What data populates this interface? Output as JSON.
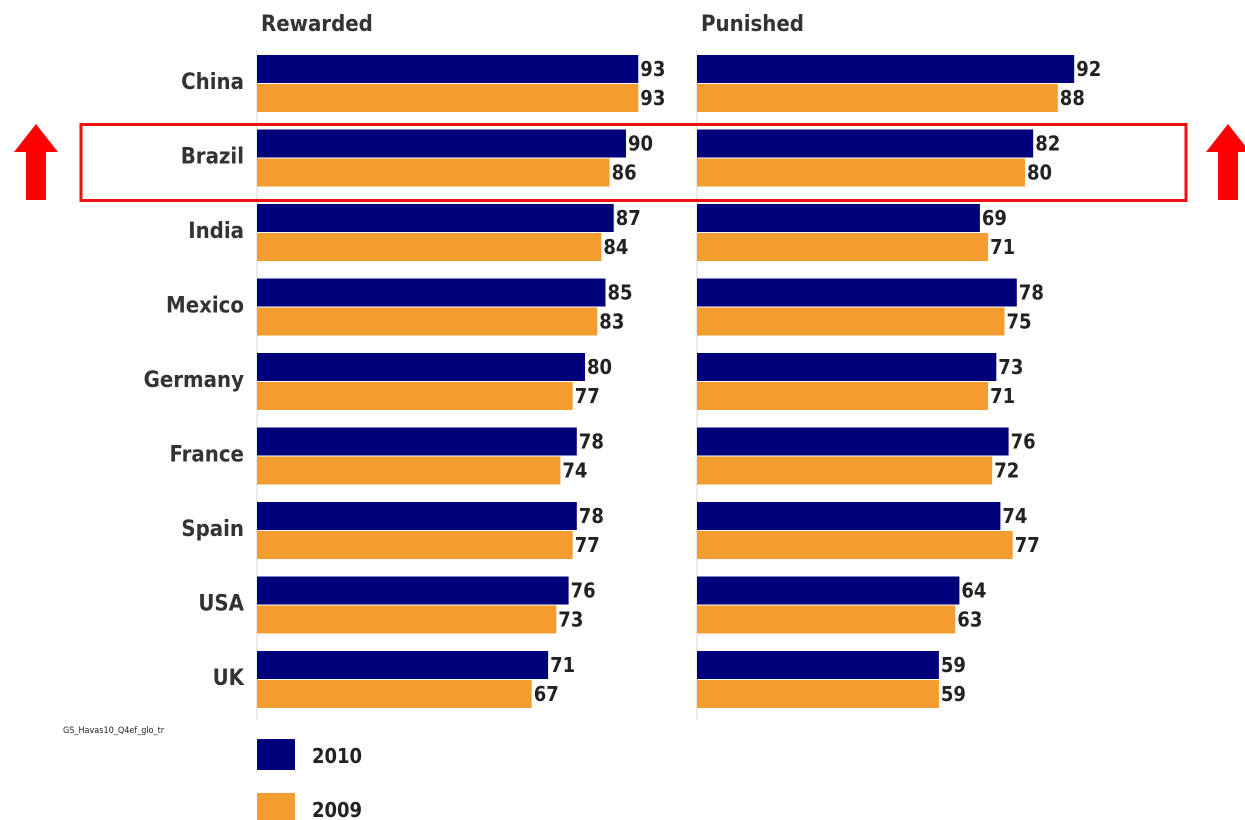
{
  "chart_data": {
    "type": "bar",
    "orientation": "horizontal",
    "categories": [
      "China",
      "Brazil",
      "India",
      "Mexico",
      "Germany",
      "France",
      "Spain",
      "USA",
      "UK"
    ],
    "panels": [
      {
        "title": "Rewarded",
        "series": [
          {
            "name": "2010",
            "values": [
              93,
              90,
              87,
              85,
              80,
              78,
              78,
              76,
              71
            ]
          },
          {
            "name": "2009",
            "values": [
              93,
              86,
              84,
              83,
              77,
              74,
              77,
              73,
              67
            ]
          }
        ]
      },
      {
        "title": "Punished",
        "series": [
          {
            "name": "2010",
            "values": [
              92,
              82,
              69,
              78,
              73,
              76,
              74,
              64,
              59
            ]
          },
          {
            "name": "2009",
            "values": [
              88,
              80,
              71,
              75,
              71,
              72,
              77,
              63,
              59
            ]
          }
        ]
      }
    ],
    "legend": {
      "placement": "bottom-left",
      "entries": [
        {
          "name": "2010",
          "color": "#00007a"
        },
        {
          "name": "2009",
          "color": "#f39c2f"
        }
      ]
    },
    "colors": {
      "2010": "#00007a",
      "2009": "#f39c2f",
      "highlight": "#ee1111"
    },
    "highlight": {
      "category": "Brazil",
      "marker": "up-arrow"
    },
    "source_note": "GS_Havas10_Q4ef_glo_tr"
  }
}
